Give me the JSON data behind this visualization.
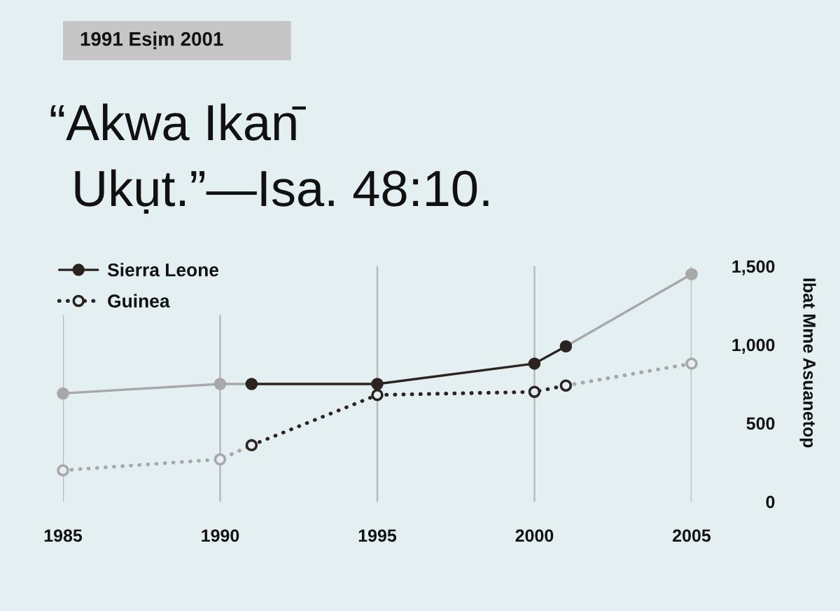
{
  "chart_data": {
    "type": "line",
    "title": "1991 Esịm 2001",
    "subtitle": "“Akwa Ikan̄\nUkụt.”—Isa. 48:10.",
    "ylabel": "Ibat Mme Asuanetop",
    "xlim": [
      1985,
      2005
    ],
    "xticks": [
      1985,
      1990,
      1995,
      2000,
      2005
    ],
    "ylim": [
      0,
      1500
    ],
    "yticks": [
      0,
      500,
      {
        "value": 1000,
        "label": "1,000"
      },
      {
        "value": 1500,
        "label": "1,500"
      }
    ],
    "grid": "x",
    "legend": "top left",
    "marker": "circle",
    "series": [
      {
        "color": "#a8a8a8",
        "line_style": "solid",
        "x": [
          1985,
          1990,
          1991
        ],
        "values": [
          690,
          750,
          750
        ]
      },
      {
        "color": "#a8a8a8",
        "line_style": "solid",
        "x": [
          2001,
          2005
        ],
        "values": [
          990,
          1450
        ]
      },
      {
        "color": "#a8a8a8",
        "line_style": "dotted",
        "x": [
          1985,
          1990,
          1991
        ],
        "values": [
          200,
          270,
          360
        ]
      },
      {
        "color": "#a8a8a8",
        "line_style": "dotted",
        "x": [
          2001,
          2005
        ],
        "values": [
          740,
          880
        ]
      },
      {
        "name": "Sierra Leone",
        "color": "#2b2320",
        "line_style": "solid",
        "x": [
          1991,
          1995,
          2000,
          2001
        ],
        "values": [
          750,
          750,
          880,
          990
        ]
      },
      {
        "name": "Guinea",
        "color": "#2b2320",
        "line_style": "dotted",
        "x": [
          1991,
          1995,
          2000,
          2001
        ],
        "values": [
          360,
          680,
          700,
          740
        ]
      }
    ]
  }
}
